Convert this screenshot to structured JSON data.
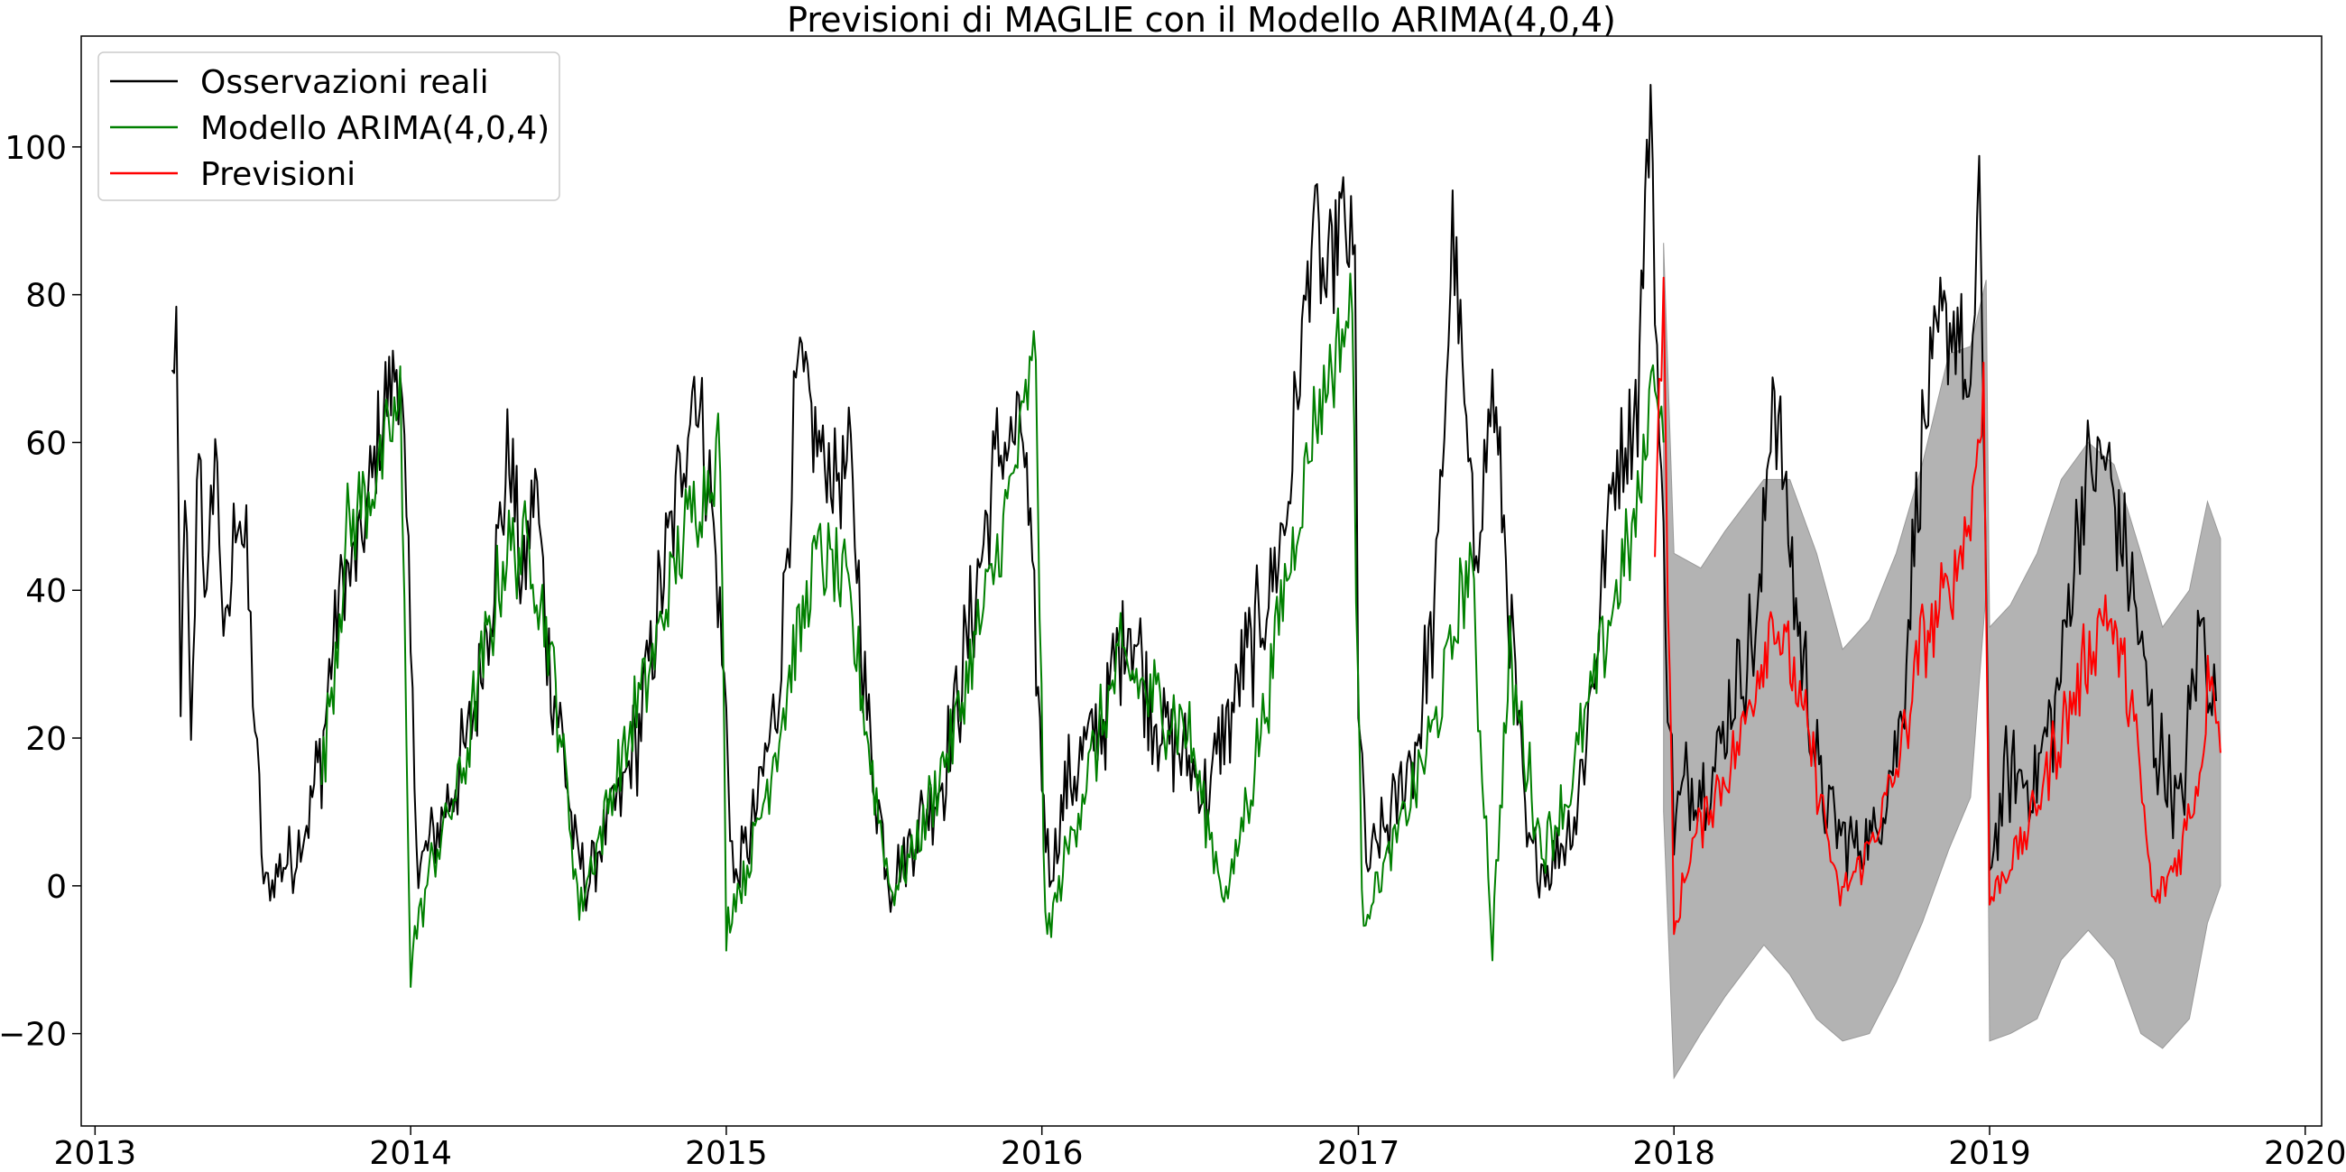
{
  "chart_data": {
    "type": "line",
    "title": "Previsioni di MAGLIE con il Modello ARIMA(4,0,4)",
    "xlabel": "",
    "ylabel": "",
    "x_unit": "date (daily)",
    "xlim": [
      "2012-12-16",
      "2020-01-20"
    ],
    "ylim": [
      -32.5,
      115
    ],
    "x_ticks": [
      {
        "date": "2013-01-01",
        "label": "2013"
      },
      {
        "date": "2014-01-01",
        "label": "2014"
      },
      {
        "date": "2015-01-01",
        "label": "2015"
      },
      {
        "date": "2016-01-01",
        "label": "2016"
      },
      {
        "date": "2017-01-01",
        "label": "2017"
      },
      {
        "date": "2018-01-01",
        "label": "2018"
      },
      {
        "date": "2019-01-01",
        "label": "2019"
      },
      {
        "date": "2020-01-01",
        "label": "2020"
      }
    ],
    "y_ticks": [
      {
        "value": -20,
        "label": "−20"
      },
      {
        "value": 0,
        "label": "0"
      },
      {
        "value": 20,
        "label": "20"
      },
      {
        "value": 40,
        "label": "40"
      },
      {
        "value": 60,
        "label": "60"
      },
      {
        "value": 80,
        "label": "80"
      },
      {
        "value": 100,
        "label": "100"
      }
    ],
    "grid": false,
    "legend_position": "upper-left",
    "legend": [
      {
        "label": "Osservazioni reali",
        "color": "#000000"
      },
      {
        "label": "Modello ARIMA(4,0,4)",
        "color": "#008000"
      },
      {
        "label": "Previsioni",
        "color": "#ff0000"
      }
    ],
    "confidence_band_color": "#b3b3b3",
    "series": [
      {
        "name": "Osservazioni reali",
        "color": "#000000",
        "kind": "daily observations (approximate envelope)",
        "points": [
          [
            "2013-03-31",
            67
          ],
          [
            "2013-04-05",
            76
          ],
          [
            "2013-04-10",
            20
          ],
          [
            "2013-04-15",
            58
          ],
          [
            "2013-04-22",
            15
          ],
          [
            "2013-05-01",
            64
          ],
          [
            "2013-05-10",
            35
          ],
          [
            "2013-05-20",
            61
          ],
          [
            "2013-06-01",
            30
          ],
          [
            "2013-06-15",
            54
          ],
          [
            "2013-06-25",
            43
          ],
          [
            "2013-07-05",
            22
          ],
          [
            "2013-07-15",
            0
          ],
          [
            "2013-07-25",
            0
          ],
          [
            "2013-08-05",
            3
          ],
          [
            "2013-08-20",
            4
          ],
          [
            "2013-09-05",
            10
          ],
          [
            "2013-09-20",
            18
          ],
          [
            "2013-10-10",
            40
          ],
          [
            "2013-11-01",
            44
          ],
          [
            "2013-11-20",
            56
          ],
          [
            "2013-12-05",
            67
          ],
          [
            "2013-12-20",
            72
          ],
          [
            "2014-01-01",
            30
          ],
          [
            "2014-01-10",
            2
          ],
          [
            "2014-01-25",
            6
          ],
          [
            "2014-02-15",
            12
          ],
          [
            "2014-03-10",
            20
          ],
          [
            "2014-04-10",
            44
          ],
          [
            "2014-04-25",
            59
          ],
          [
            "2014-05-10",
            40
          ],
          [
            "2014-05-25",
            56
          ],
          [
            "2014-06-10",
            30
          ],
          [
            "2014-06-25",
            20
          ],
          [
            "2014-07-10",
            5
          ],
          [
            "2014-07-25",
            0
          ],
          [
            "2014-08-10",
            7
          ],
          [
            "2014-09-01",
            12
          ],
          [
            "2014-09-20",
            20
          ],
          [
            "2014-10-10",
            35
          ],
          [
            "2014-11-01",
            50
          ],
          [
            "2014-11-25",
            69
          ],
          [
            "2014-12-15",
            52
          ],
          [
            "2015-01-01",
            22
          ],
          [
            "2015-01-10",
            0
          ],
          [
            "2015-02-01",
            8
          ],
          [
            "2015-03-01",
            25
          ],
          [
            "2015-03-25",
            70
          ],
          [
            "2015-04-25",
            57
          ],
          [
            "2015-05-25",
            56
          ],
          [
            "2015-06-15",
            20
          ],
          [
            "2015-07-10",
            0
          ],
          [
            "2015-08-10",
            8
          ],
          [
            "2015-09-10",
            15
          ],
          [
            "2015-10-10",
            35
          ],
          [
            "2015-11-10",
            58
          ],
          [
            "2015-12-10",
            62
          ],
          [
            "2016-01-01",
            16
          ],
          [
            "2016-01-10",
            2
          ],
          [
            "2016-02-01",
            14
          ],
          [
            "2016-03-10",
            22
          ],
          [
            "2016-04-10",
            37
          ],
          [
            "2016-05-10",
            24
          ],
          [
            "2016-06-10",
            18
          ],
          [
            "2016-07-10",
            12
          ],
          [
            "2016-08-10",
            25
          ],
          [
            "2016-09-10",
            36
          ],
          [
            "2016-10-10",
            50
          ],
          [
            "2016-11-10",
            91
          ],
          [
            "2016-11-25",
            80
          ],
          [
            "2016-12-10",
            91
          ],
          [
            "2016-12-28",
            83
          ],
          [
            "2017-01-01",
            28
          ],
          [
            "2017-01-10",
            2
          ],
          [
            "2017-02-10",
            10
          ],
          [
            "2017-03-10",
            20
          ],
          [
            "2017-04-01",
            39
          ],
          [
            "2017-04-20",
            88
          ],
          [
            "2017-05-15",
            45
          ],
          [
            "2017-06-05",
            67
          ],
          [
            "2017-06-25",
            38
          ],
          [
            "2017-07-15",
            5
          ],
          [
            "2017-08-10",
            2
          ],
          [
            "2017-09-10",
            10
          ],
          [
            "2017-10-01",
            30
          ],
          [
            "2017-10-25",
            58
          ],
          [
            "2017-11-20",
            66
          ],
          [
            "2017-12-05",
            109
          ],
          [
            "2017-12-15",
            60
          ],
          [
            "2018-01-01",
            8
          ],
          [
            "2018-01-15",
            14
          ],
          [
            "2018-02-15",
            15
          ],
          [
            "2018-03-15",
            28
          ],
          [
            "2018-04-10",
            36
          ],
          [
            "2018-04-25",
            70
          ],
          [
            "2018-05-20",
            40
          ],
          [
            "2018-06-20",
            12
          ],
          [
            "2018-07-20",
            6
          ],
          [
            "2018-08-20",
            6
          ],
          [
            "2018-09-20",
            22
          ],
          [
            "2018-10-15",
            60
          ],
          [
            "2018-11-05",
            75
          ],
          [
            "2018-11-25",
            77
          ],
          [
            "2018-12-10",
            60
          ],
          [
            "2018-12-20",
            101
          ],
          [
            "2019-01-01",
            3
          ],
          [
            "2019-01-20",
            15
          ],
          [
            "2019-02-20",
            14
          ],
          [
            "2019-03-20",
            25
          ],
          [
            "2019-04-20",
            55
          ],
          [
            "2019-05-15",
            58
          ],
          [
            "2019-06-15",
            40
          ],
          [
            "2019-07-10",
            20
          ],
          [
            "2019-08-10",
            10
          ],
          [
            "2019-09-01",
            36
          ],
          [
            "2019-09-20",
            25
          ]
        ]
      },
      {
        "name": "Modello ARIMA(4,0,4)",
        "color": "#008000",
        "kind": "in-sample fit (approximate envelope)",
        "points": [
          [
            "2013-09-20",
            15
          ],
          [
            "2013-10-20",
            48
          ],
          [
            "2013-11-20",
            55
          ],
          [
            "2013-12-20",
            65
          ],
          [
            "2014-01-01",
            -10
          ],
          [
            "2014-01-25",
            3
          ],
          [
            "2014-03-01",
            15
          ],
          [
            "2014-04-20",
            45
          ],
          [
            "2014-05-20",
            46
          ],
          [
            "2014-06-20",
            25
          ],
          [
            "2014-07-15",
            -3
          ],
          [
            "2014-08-15",
            10
          ],
          [
            "2014-10-01",
            28
          ],
          [
            "2014-11-15",
            48
          ],
          [
            "2014-12-25",
            60
          ],
          [
            "2015-01-01",
            -5
          ],
          [
            "2015-02-01",
            5
          ],
          [
            "2015-03-15",
            28
          ],
          [
            "2015-04-15",
            45
          ],
          [
            "2015-05-20",
            40
          ],
          [
            "2015-07-10",
            -1
          ],
          [
            "2015-08-10",
            6
          ],
          [
            "2015-10-01",
            25
          ],
          [
            "2015-11-15",
            47
          ],
          [
            "2015-12-25",
            72
          ],
          [
            "2016-01-05",
            -8
          ],
          [
            "2016-02-10",
            10
          ],
          [
            "2016-04-01",
            30
          ],
          [
            "2016-05-10",
            25
          ],
          [
            "2016-06-15",
            22
          ],
          [
            "2016-08-01",
            -2
          ],
          [
            "2016-09-01",
            15
          ],
          [
            "2016-10-15",
            45
          ],
          [
            "2016-11-15",
            65
          ],
          [
            "2016-12-25",
            78
          ],
          [
            "2017-01-05",
            -4
          ],
          [
            "2017-02-10",
            5
          ],
          [
            "2017-04-01",
            22
          ],
          [
            "2017-05-10",
            45
          ],
          [
            "2017-06-05",
            -7
          ],
          [
            "2017-06-25",
            30
          ],
          [
            "2017-08-01",
            5
          ],
          [
            "2017-09-01",
            12
          ],
          [
            "2017-10-15",
            35
          ],
          [
            "2017-11-20",
            50
          ],
          [
            "2017-12-10",
            72
          ],
          [
            "2017-12-20",
            60
          ]
        ]
      },
      {
        "name": "Previsioni",
        "color": "#ff0000",
        "kind": "out-of-sample forecast (approximate envelope)",
        "points": [
          [
            "2017-12-10",
            50
          ],
          [
            "2017-12-20",
            78
          ],
          [
            "2018-01-01",
            -7
          ],
          [
            "2018-01-20",
            5
          ],
          [
            "2018-02-15",
            12
          ],
          [
            "2018-03-15",
            18
          ],
          [
            "2018-04-10",
            30
          ],
          [
            "2018-04-25",
            37
          ],
          [
            "2018-05-20",
            28
          ],
          [
            "2018-06-20",
            12
          ],
          [
            "2018-07-10",
            -2
          ],
          [
            "2018-08-10",
            4
          ],
          [
            "2018-09-15",
            15
          ],
          [
            "2018-10-15",
            33
          ],
          [
            "2018-11-15",
            40
          ],
          [
            "2018-12-10",
            50
          ],
          [
            "2018-12-25",
            68
          ],
          [
            "2019-01-01",
            -2
          ],
          [
            "2019-01-20",
            2
          ],
          [
            "2019-02-15",
            8
          ],
          [
            "2019-03-15",
            18
          ],
          [
            "2019-04-15",
            28
          ],
          [
            "2019-05-15",
            38
          ],
          [
            "2019-06-15",
            24
          ],
          [
            "2019-07-10",
            -3
          ],
          [
            "2019-08-10",
            5
          ],
          [
            "2019-09-01",
            15
          ],
          [
            "2019-09-15",
            32
          ],
          [
            "2019-09-25",
            18
          ]
        ]
      }
    ],
    "confidence_band": {
      "label": "",
      "points": [
        [
          "2017-12-20",
          10,
          87
        ],
        [
          "2018-01-01",
          -26,
          45
        ],
        [
          "2018-02-01",
          -20,
          43
        ],
        [
          "2018-03-01",
          -15,
          48
        ],
        [
          "2018-04-15",
          -8,
          55
        ],
        [
          "2018-05-15",
          -12,
          55
        ],
        [
          "2018-06-15",
          -18,
          45
        ],
        [
          "2018-07-15",
          -21,
          32
        ],
        [
          "2018-08-15",
          -20,
          36
        ],
        [
          "2018-09-15",
          -13,
          45
        ],
        [
          "2018-10-15",
          -5,
          57
        ],
        [
          "2018-11-15",
          5,
          72
        ],
        [
          "2018-12-10",
          12,
          73
        ],
        [
          "2018-12-28",
          40,
          82
        ],
        [
          "2019-01-01",
          -21,
          35
        ],
        [
          "2019-01-25",
          -20,
          38
        ],
        [
          "2019-02-25",
          -18,
          45
        ],
        [
          "2019-03-25",
          -10,
          55
        ],
        [
          "2019-04-25",
          -6,
          60
        ],
        [
          "2019-05-25",
          -10,
          57
        ],
        [
          "2019-06-25",
          -20,
          45
        ],
        [
          "2019-07-20",
          -22,
          35
        ],
        [
          "2019-08-20",
          -18,
          40
        ],
        [
          "2019-09-10",
          -5,
          52
        ],
        [
          "2019-09-25",
          0,
          47
        ]
      ]
    }
  }
}
